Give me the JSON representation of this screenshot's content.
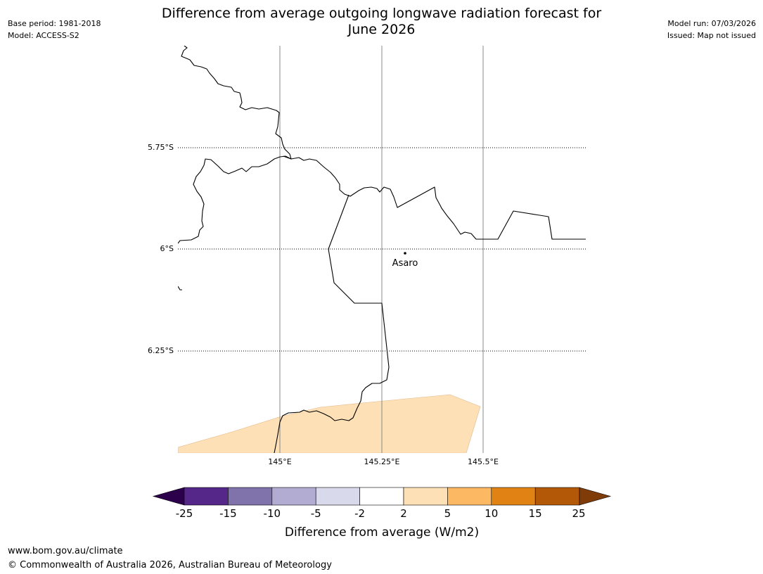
{
  "header": {
    "base_period": "Base period: 1981-2018",
    "model": "Model: ACCESS-S2",
    "title_line1": "Difference from average outgoing longwave radiation forecast for",
    "title_line2": "June 2026",
    "model_run": "Model run: 07/03/2026",
    "issued": "Issued: Map not issued"
  },
  "map": {
    "lat_labels": [
      "5.75°S",
      "6°S",
      "6.25°S"
    ],
    "lon_labels": [
      "145°E",
      "145.25°E",
      "145.5°E"
    ],
    "place": {
      "name": "Asaro"
    }
  },
  "colorbar": {
    "tick_labels": [
      "-25",
      "-15",
      "-10",
      "-5",
      "-2",
      "2",
      "5",
      "10",
      "15",
      "25"
    ],
    "colors": [
      "#2d004b",
      "#542788",
      "#8073ac",
      "#b2abd2",
      "#d8daeb",
      "#ffffff",
      "#fee0b6",
      "#fdb863",
      "#e08214",
      "#b35806",
      "#7f3b08"
    ],
    "label": "Difference from average (W/m2)"
  },
  "footer": {
    "url": "www.bom.gov.au/climate",
    "copyright": "© Commonwealth of Australia 2026, Australian Bureau of Meteorology"
  }
}
